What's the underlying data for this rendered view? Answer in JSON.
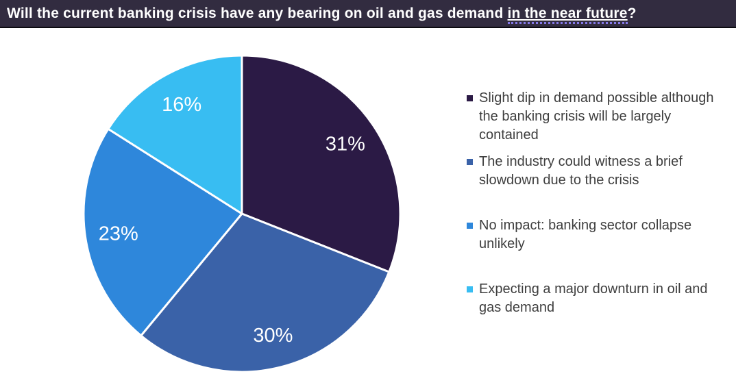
{
  "title": {
    "prefix": "Will the current banking crisis have any bearing on oil and gas demand ",
    "linked_phrase": "in the near future",
    "suffix": "?"
  },
  "colors": {
    "title_bar_bg": "#322C40",
    "title_text": "#FFFFFF",
    "title_dotted_underline": "#8579E8",
    "legend_text": "#3E3E3E",
    "slice_separator": "#FFFFFF",
    "data_label_text": "#FFFFFF"
  },
  "chart_data": {
    "type": "pie",
    "title": "Will the current banking crisis have any bearing on oil and gas demand in the near future?",
    "start_angle_deg": 0,
    "direction": "clockwise",
    "legend_position": "right",
    "data_labels": "percent, inside slices",
    "slices": [
      {
        "label": "Slight dip in demand possible although the banking crisis will be largely contained",
        "value": 31,
        "display": "31%",
        "color": "#2B1A45"
      },
      {
        "label": "The industry could witness a brief slowdown due to the crisis",
        "value": 30,
        "display": "30%",
        "color": "#3A62A8"
      },
      {
        "label": "No impact: banking sector collapse unlikely",
        "value": 23,
        "display": "23%",
        "color": "#2E87DB"
      },
      {
        "label": "Expecting a major downturn in oil and gas demand",
        "value": 16,
        "display": "16%",
        "color": "#38BDF2"
      }
    ]
  }
}
